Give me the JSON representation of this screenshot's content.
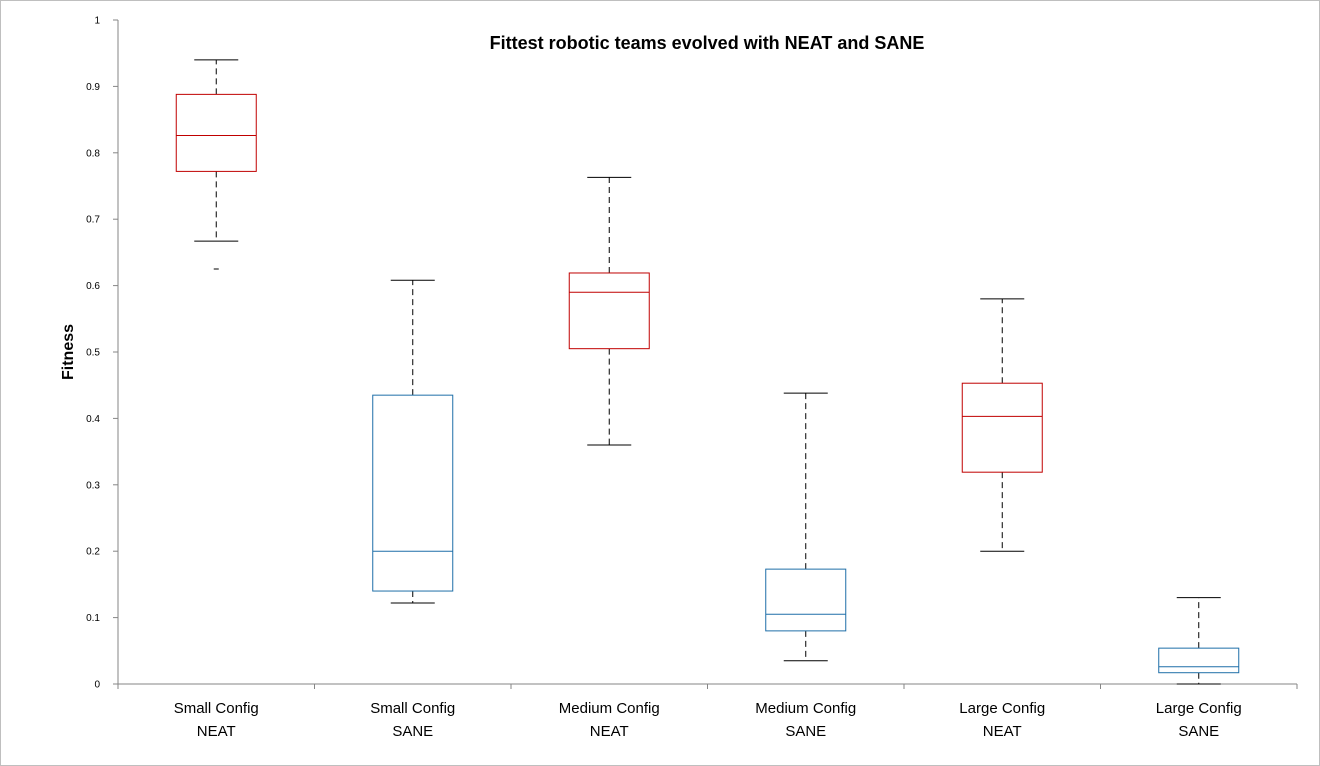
{
  "chart_data": {
    "type": "boxplot",
    "title": "Fittest robotic teams evolved with NEAT and SANE",
    "xlabel": "",
    "ylabel": "Fitness",
    "ylim": [
      0,
      1
    ],
    "yticks": [
      "0",
      "0.1",
      "0.2",
      "0.3",
      "0.4",
      "0.5",
      "0.6",
      "0.7",
      "0.8",
      "0.9",
      "1"
    ],
    "grid": false,
    "legend": "none",
    "colors": {
      "NEAT": "#c00000",
      "SANE": "#1f6fa8",
      "whisker": "#000000"
    },
    "categories": [
      {
        "line1": "Small Config",
        "line2": "NEAT",
        "method": "NEAT",
        "min": 0.667,
        "q1": 0.772,
        "median": 0.826,
        "q3": 0.888,
        "max": 0.94,
        "outliers": [
          0.625
        ]
      },
      {
        "line1": "Small Config",
        "line2": "SANE",
        "method": "SANE",
        "min": 0.122,
        "q1": 0.14,
        "median": 0.2,
        "q3": 0.435,
        "max": 0.608,
        "outliers": []
      },
      {
        "line1": "Medium Config",
        "line2": "NEAT",
        "method": "NEAT",
        "min": 0.36,
        "q1": 0.505,
        "median": 0.59,
        "q3": 0.619,
        "max": 0.763,
        "outliers": []
      },
      {
        "line1": "Medium Config",
        "line2": "SANE",
        "method": "SANE",
        "min": 0.035,
        "q1": 0.08,
        "median": 0.105,
        "q3": 0.173,
        "max": 0.438,
        "outliers": []
      },
      {
        "line1": "Large Config",
        "line2": "NEAT",
        "method": "NEAT",
        "min": 0.2,
        "q1": 0.319,
        "median": 0.403,
        "q3": 0.453,
        "max": 0.58,
        "outliers": []
      },
      {
        "line1": "Large Config",
        "line2": "SANE",
        "method": "SANE",
        "min": 0.0,
        "q1": 0.017,
        "median": 0.026,
        "q3": 0.054,
        "max": 0.13,
        "outliers": []
      }
    ]
  }
}
